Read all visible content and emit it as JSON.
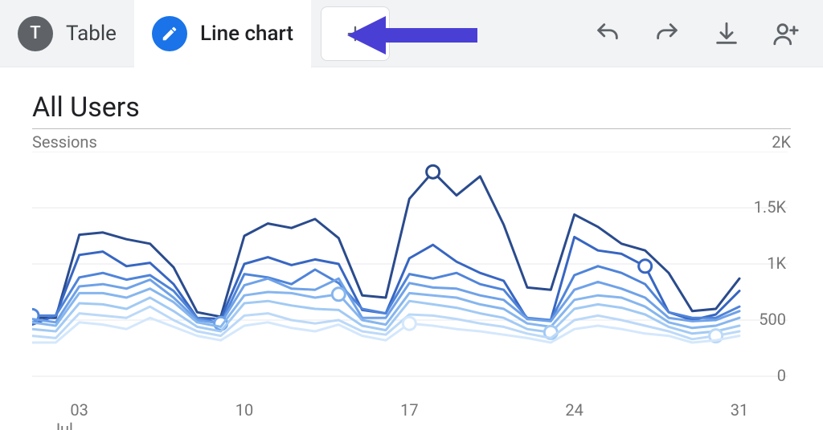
{
  "tabs": {
    "table": {
      "label": "Table",
      "letter": "T"
    },
    "line": {
      "label": "Line chart"
    }
  },
  "arrow_color": "#4a3fd4",
  "chart": {
    "title": "All Users",
    "y_axis_label": "Sessions",
    "type": "line",
    "y": {
      "min": 0,
      "max": 2000,
      "ticks": [
        0,
        500,
        1000,
        1500,
        2000
      ],
      "tick_labels": [
        "0",
        "500",
        "1K",
        "1.5K",
        "2K"
      ]
    },
    "x": {
      "ticks": [
        3,
        10,
        17,
        24,
        31
      ],
      "tick_labels": [
        "03",
        "10",
        "17",
        "24",
        "31"
      ],
      "month_label": "Jul",
      "min": 1,
      "max": 31
    },
    "grid_color": "#e8eaed",
    "axis_text_color": "#757575",
    "background_color": "#ffffff",
    "line_width": 3,
    "marker_radius": 8,
    "series": [
      {
        "color": "#2a4b8d",
        "values": [
          520,
          520,
          1260,
          1280,
          1220,
          1180,
          970,
          570,
          530,
          1250,
          1360,
          1320,
          1400,
          1230,
          720,
          700,
          1580,
          1820,
          1610,
          1780,
          1350,
          790,
          770,
          1440,
          1330,
          1180,
          1120,
          920,
          580,
          600,
          870
        ],
        "marker_at": 18
      },
      {
        "color": "#3766c2",
        "values": [
          460,
          540,
          1080,
          1110,
          980,
          1010,
          820,
          520,
          510,
          1000,
          1060,
          990,
          1040,
          1000,
          590,
          560,
          1050,
          1170,
          1020,
          920,
          850,
          510,
          500,
          1240,
          1120,
          1090,
          980,
          570,
          500,
          550,
          760
        ],
        "marker_at": 27
      },
      {
        "color": "#4f84d9",
        "values": [
          540,
          540,
          880,
          920,
          860,
          900,
          760,
          520,
          470,
          910,
          880,
          820,
          950,
          830,
          600,
          560,
          910,
          870,
          920,
          820,
          770,
          520,
          500,
          900,
          980,
          920,
          820,
          570,
          520,
          520,
          620
        ],
        "marker_at": 1
      },
      {
        "color": "#6fa2e8",
        "values": [
          510,
          480,
          800,
          820,
          780,
          860,
          700,
          500,
          470,
          810,
          870,
          780,
          770,
          870,
          520,
          520,
          830,
          790,
          780,
          720,
          680,
          510,
          490,
          770,
          840,
          780,
          700,
          520,
          490,
          500,
          580
        ],
        "marker_at": 9
      },
      {
        "color": "#86b6ee",
        "values": [
          480,
          450,
          740,
          740,
          700,
          780,
          660,
          480,
          440,
          720,
          750,
          740,
          700,
          730,
          500,
          460,
          740,
          720,
          700,
          640,
          600,
          470,
          440,
          680,
          720,
          700,
          620,
          480,
          430,
          450,
          520
        ],
        "marker_at": 14
      },
      {
        "color": "#a2caf4",
        "values": [
          420,
          400,
          650,
          640,
          600,
          700,
          580,
          440,
          400,
          650,
          670,
          630,
          600,
          590,
          450,
          410,
          670,
          640,
          610,
          560,
          520,
          420,
          390,
          600,
          640,
          610,
          550,
          440,
          380,
          400,
          450
        ],
        "marker_at": 23
      },
      {
        "color": "#bcd9f8",
        "values": [
          360,
          340,
          560,
          540,
          520,
          620,
          500,
          400,
          360,
          540,
          560,
          500,
          470,
          500,
          400,
          370,
          550,
          540,
          510,
          470,
          440,
          380,
          340,
          500,
          540,
          500,
          450,
          400,
          330,
          360,
          400
        ],
        "marker_at": 30
      },
      {
        "color": "#d4e7fc",
        "values": [
          300,
          300,
          480,
          460,
          420,
          520,
          440,
          360,
          320,
          450,
          480,
          430,
          400,
          460,
          360,
          320,
          470,
          450,
          420,
          400,
          370,
          340,
          300,
          420,
          450,
          420,
          380,
          360,
          300,
          320,
          360
        ],
        "marker_at": 17
      }
    ]
  }
}
